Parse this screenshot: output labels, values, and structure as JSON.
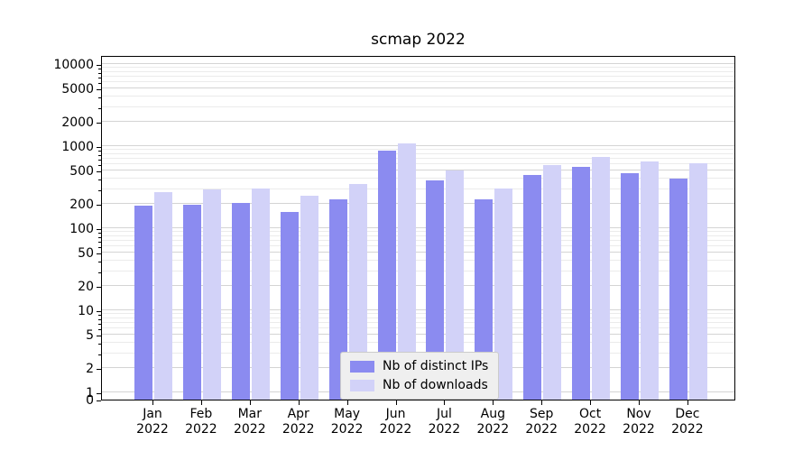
{
  "chart_data": {
    "type": "bar",
    "title": "scmap 2022",
    "xlabel": "",
    "ylabel": "",
    "year": "2022",
    "categories": [
      "Jan",
      "Feb",
      "Mar",
      "Apr",
      "May",
      "Jun",
      "Jul",
      "Aug",
      "Sep",
      "Oct",
      "Nov",
      "Dec"
    ],
    "series": [
      {
        "name": "Nb of distinct IPs",
        "color": "#8b8bf0",
        "values": [
          190,
          193,
          203,
          158,
          226,
          890,
          385,
          226,
          450,
          555,
          470,
          405
        ]
      },
      {
        "name": "Nb of downloads",
        "color": "#d2d2f8",
        "values": [
          272,
          296,
          308,
          250,
          345,
          1070,
          510,
          305,
          590,
          740,
          655,
          625
        ]
      }
    ],
    "yscale": "symlog",
    "yticks": [
      0,
      1,
      2,
      5,
      10,
      20,
      50,
      100,
      200,
      500,
      1000,
      2000,
      5000,
      10000
    ],
    "ylim": [
      0,
      12900
    ],
    "grid": true,
    "legend_position": "lower center"
  }
}
